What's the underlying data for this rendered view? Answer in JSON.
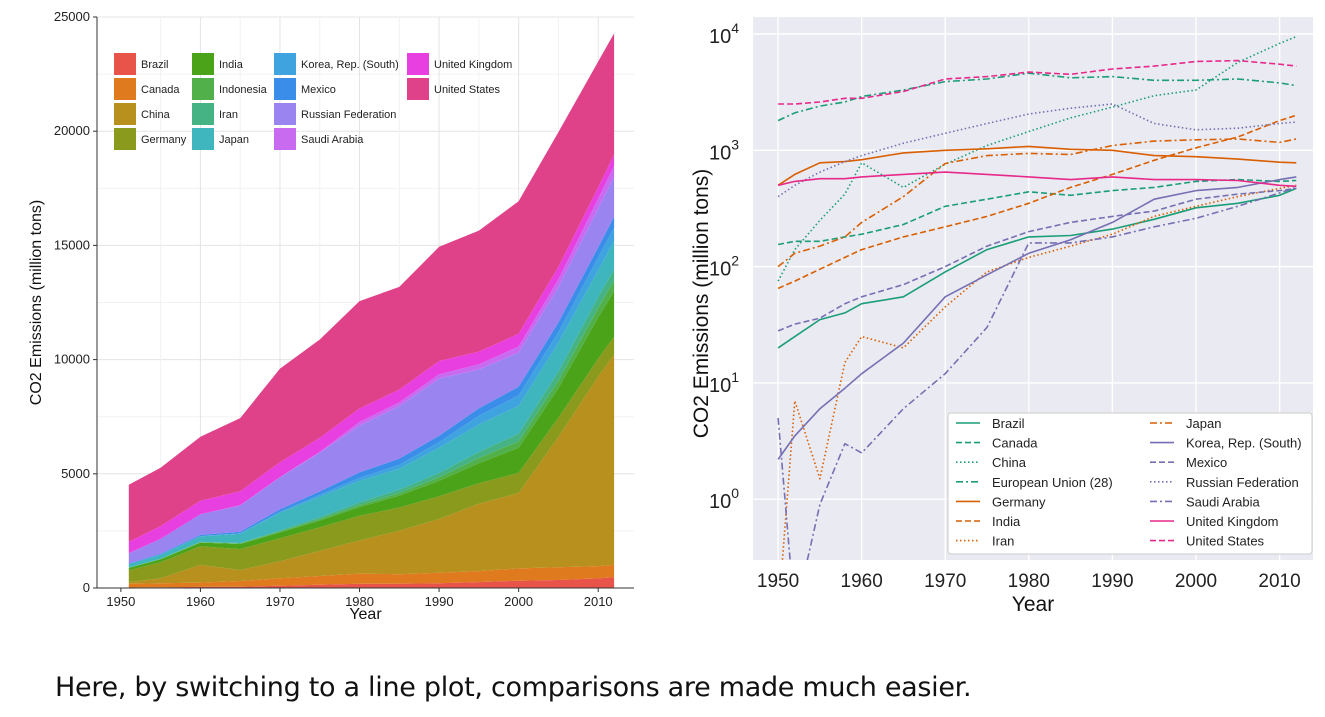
{
  "caption": "Here, by switching to a line plot, comparisons are made much easier.",
  "chart_data": [
    {
      "type": "area",
      "stacked": true,
      "xlabel": "Year",
      "ylabel": "CO2 Emissions (million tons)",
      "xlim": [
        1951,
        2012
      ],
      "ylim": [
        0,
        25000
      ],
      "yticks": [
        0,
        5000,
        10000,
        15000,
        20000,
        25000
      ],
      "xticks": [
        1950,
        1960,
        1970,
        1980,
        1990,
        2000,
        2010
      ],
      "grid": true,
      "legend_position": "top-left",
      "years": [
        1951,
        1955,
        1960,
        1965,
        1970,
        1975,
        1980,
        1985,
        1990,
        1995,
        2000,
        2005,
        2010,
        2012
      ],
      "series": [
        {
          "name": "Brazil",
          "color": "#e8534a",
          "values": [
            20,
            35,
            48,
            55,
            95,
            145,
            190,
            185,
            210,
            260,
            320,
            350,
            420,
            470
          ]
        },
        {
          "name": "Canada",
          "color": "#e07a1f",
          "values": [
            160,
            170,
            190,
            250,
            330,
            380,
            440,
            420,
            460,
            480,
            540,
            560,
            540,
            550
          ]
        },
        {
          "name": "China",
          "color": "#b8901e",
          "values": [
            80,
            220,
            780,
            480,
            750,
            1100,
            1450,
            1900,
            2350,
            2950,
            3300,
            5700,
            8300,
            9200
          ]
        },
        {
          "name": "Germany",
          "color": "#8a9a1c",
          "values": [
            520,
            700,
            810,
            920,
            1000,
            1030,
            1080,
            1020,
            1000,
            900,
            880,
            840,
            790,
            780
          ]
        },
        {
          "name": "India",
          "color": "#4ba31a",
          "values": [
            100,
            130,
            160,
            220,
            260,
            300,
            380,
            520,
            680,
            880,
            1100,
            1300,
            1800,
            2000
          ]
        },
        {
          "name": "Indonesia",
          "color": "#52b04a",
          "values": [
            10,
            15,
            20,
            25,
            40,
            60,
            90,
            110,
            150,
            220,
            280,
            330,
            420,
            450
          ]
        },
        {
          "name": "Iran",
          "color": "#45b383",
          "values": [
            7,
            8,
            12,
            22,
            45,
            80,
            120,
            150,
            190,
            270,
            330,
            400,
            470,
            500
          ]
        },
        {
          "name": "Japan",
          "color": "#3fb5bd",
          "values": [
            140,
            180,
            240,
            400,
            770,
            900,
            940,
            920,
            1100,
            1200,
            1230,
            1250,
            1170,
            1250
          ]
        },
        {
          "name": "Korea, Rep. (South)",
          "color": "#3fa3e0",
          "values": [
            2,
            6,
            12,
            22,
            55,
            85,
            130,
            170,
            240,
            380,
            450,
            480,
            560,
            590
          ]
        },
        {
          "name": "Mexico",
          "color": "#3a8de8",
          "values": [
            28,
            36,
            55,
            70,
            100,
            150,
            240,
            270,
            290,
            330,
            380,
            420,
            450,
            470
          ]
        },
        {
          "name": "Russian Federation",
          "color": "#9a84f0",
          "values": [
            450,
            650,
            900,
            1150,
            1400,
            1700,
            2050,
            2300,
            2500,
            1700,
            1500,
            1550,
            1700,
            1750
          ]
        },
        {
          "name": "Saudi Arabia",
          "color": "#c96bf0",
          "values": [
            0.5,
            1.5,
            3,
            6,
            12,
            30,
            160,
            160,
            180,
            220,
            260,
            330,
            430,
            480
          ]
        },
        {
          "name": "United Kingdom",
          "color": "#e83fe0",
          "values": [
            500,
            560,
            590,
            620,
            650,
            620,
            590,
            560,
            590,
            560,
            560,
            550,
            500,
            490
          ]
        },
        {
          "name": "United States",
          "color": "#e0428a",
          "values": [
            2500,
            2550,
            2800,
            3200,
            4100,
            4300,
            4700,
            4500,
            5000,
            5300,
            5800,
            5900,
            5500,
            5300
          ]
        }
      ]
    },
    {
      "type": "line",
      "xlabel": "Year",
      "ylabel": "CO2 Emissions (million tons)",
      "yscale": "log",
      "ylim": [
        0.3,
        14000
      ],
      "xlim": [
        1947,
        2014
      ],
      "xticks": [
        1950,
        1960,
        1970,
        1980,
        1990,
        2000,
        2010
      ],
      "yticks": [
        1,
        10,
        100,
        1000,
        10000
      ],
      "ytick_labels": [
        {
          "base": "10",
          "exp": "0"
        },
        {
          "base": "10",
          "exp": "1"
        },
        {
          "base": "10",
          "exp": "2"
        },
        {
          "base": "10",
          "exp": "3"
        },
        {
          "base": "10",
          "exp": "4"
        }
      ],
      "grid": true,
      "legend_position": "bottom-right",
      "years": [
        1950,
        1952,
        1955,
        1958,
        1960,
        1965,
        1970,
        1975,
        1980,
        1985,
        1990,
        1995,
        2000,
        2005,
        2010,
        2012
      ],
      "series": [
        {
          "name": "Brazil",
          "color": "#1b9e77",
          "dash": "solid",
          "values": [
            20,
            25,
            35,
            40,
            48,
            55,
            90,
            140,
            180,
            185,
            210,
            255,
            320,
            350,
            410,
            470
          ]
        },
        {
          "name": "Canada",
          "color": "#1b9e77",
          "dash": "dashed",
          "values": [
            155,
            165,
            165,
            180,
            190,
            230,
            330,
            380,
            440,
            410,
            450,
            480,
            540,
            560,
            540,
            550
          ]
        },
        {
          "name": "China",
          "color": "#1b9e77",
          "dash": "dotted",
          "values": [
            75,
            140,
            250,
            420,
            780,
            480,
            760,
            1100,
            1450,
            1900,
            2350,
            2950,
            3300,
            5700,
            8300,
            9500
          ]
        },
        {
          "name": "European Union (28)",
          "color": "#1b9e77",
          "dash": "dashdot",
          "values": [
            1800,
            2100,
            2400,
            2600,
            2900,
            3300,
            3900,
            4100,
            4600,
            4200,
            4300,
            4000,
            4000,
            4100,
            3800,
            3600
          ]
        },
        {
          "name": "Germany",
          "color": "#d95f02",
          "dash": "solid",
          "values": [
            500,
            620,
            780,
            800,
            830,
            950,
            1000,
            1030,
            1080,
            1020,
            1000,
            900,
            880,
            840,
            790,
            780
          ]
        },
        {
          "name": "India",
          "color": "#d95f02",
          "dash": "dashed",
          "values": [
            65,
            75,
            95,
            120,
            140,
            180,
            220,
            270,
            350,
            480,
            620,
            820,
            1050,
            1300,
            1800,
            2000
          ]
        },
        {
          "name": "Iran",
          "color": "#d95f02",
          "dash": "dotted",
          "values": [
            0.1,
            7,
            1.5,
            15,
            25,
            20,
            45,
            90,
            120,
            150,
            190,
            270,
            330,
            400,
            470,
            500
          ]
        },
        {
          "name": "Japan",
          "color": "#d95f02",
          "dash": "dashdot",
          "values": [
            100,
            130,
            150,
            180,
            240,
            400,
            770,
            900,
            940,
            920,
            1100,
            1200,
            1230,
            1250,
            1170,
            1250
          ]
        },
        {
          "name": "Korea, Rep. (South)",
          "color": "#7570b3",
          "dash": "solid",
          "values": [
            2.2,
            3.5,
            6,
            9,
            12,
            22,
            55,
            85,
            130,
            170,
            240,
            380,
            450,
            480,
            560,
            590
          ]
        },
        {
          "name": "Mexico",
          "color": "#7570b3",
          "dash": "dashed",
          "values": [
            28,
            32,
            36,
            48,
            55,
            70,
            100,
            150,
            200,
            240,
            270,
            300,
            380,
            420,
            450,
            470
          ]
        },
        {
          "name": "Russian Federation",
          "color": "#7570b3",
          "dash": "dotted",
          "values": [
            400,
            500,
            650,
            800,
            900,
            1150,
            1400,
            1700,
            2050,
            2300,
            2500,
            1700,
            1500,
            1550,
            1700,
            1750
          ]
        },
        {
          "name": "Saudi Arabia",
          "color": "#7570b3",
          "dash": "dashdot",
          "values": [
            5,
            0.1,
            0.9,
            3,
            2.5,
            6,
            12,
            30,
            160,
            160,
            180,
            220,
            260,
            330,
            430,
            480
          ]
        },
        {
          "name": "United Kingdom",
          "color": "#e7298a",
          "dash": "solid",
          "values": [
            500,
            540,
            570,
            570,
            590,
            620,
            650,
            620,
            590,
            560,
            590,
            560,
            560,
            550,
            500,
            490
          ]
        },
        {
          "name": "United States",
          "color": "#e7298a",
          "dash": "dashed",
          "values": [
            2500,
            2500,
            2600,
            2800,
            2800,
            3200,
            4100,
            4300,
            4700,
            4500,
            5000,
            5300,
            5800,
            5900,
            5500,
            5300
          ]
        }
      ]
    }
  ]
}
